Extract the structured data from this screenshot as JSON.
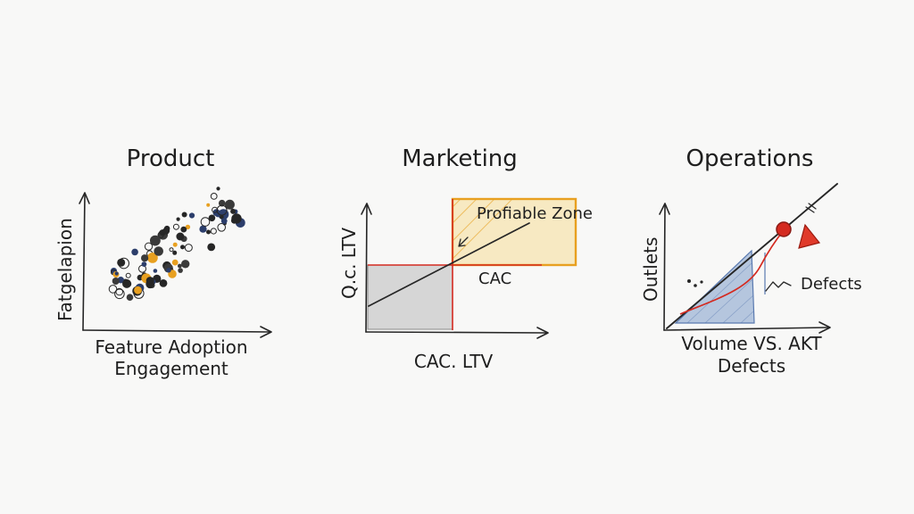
{
  "colors": {
    "background": "#f8f8f7",
    "ink": "#262626",
    "orange": "#e8a020",
    "navy": "#2c3e6b",
    "red": "#d42a20",
    "blue_fill": "#9fb6d6",
    "gray_fill": "#d6d6d6"
  },
  "panels": {
    "product": {
      "title": "Product",
      "ylabel": "Fatgelapion",
      "xlabel_line1": "Feature Adoption",
      "xlabel_line2": "Engagement"
    },
    "marketing": {
      "title": "Marketing",
      "ylabel": "Q.c. LTV",
      "zone_label": "Profiable Zone",
      "cac_label": "CAC",
      "xlabel": "CAC. LTV"
    },
    "operations": {
      "title": "Operations",
      "ylabel": "Outlets",
      "defects_label": "Defects",
      "xlabel_line1": "Volume VS. AKT",
      "xlabel_line2": "Defects"
    }
  }
}
